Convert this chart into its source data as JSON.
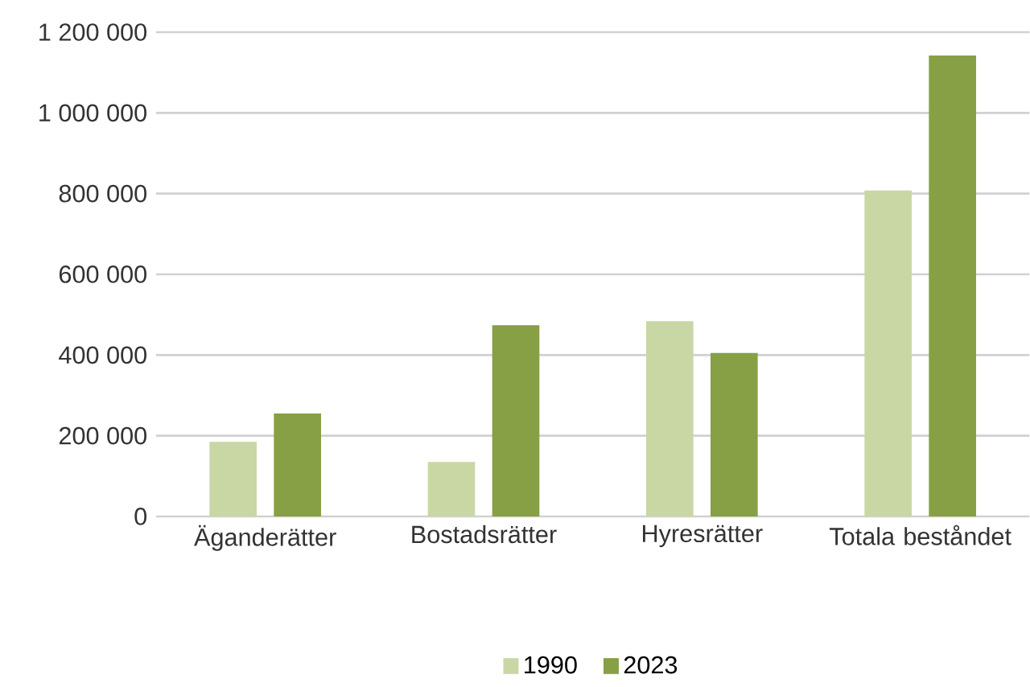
{
  "chart_data": {
    "type": "bar",
    "categories": [
      "Äganderätter",
      "Bostadsrätter",
      "Hyresrätter",
      "Totala beståndet"
    ],
    "series": [
      {
        "name": "1990",
        "color": "#c9d7a5",
        "values": [
          185000,
          135000,
          484000,
          808000
        ]
      },
      {
        "name": "2023",
        "color": "#87a045",
        "values": [
          255000,
          474000,
          405000,
          1142000
        ]
      }
    ],
    "ylim": [
      0,
      1200000
    ],
    "yticks": [
      0,
      {
        "value": 200000,
        "label": "200 000"
      },
      {
        "value": 400000,
        "label": "400 000"
      },
      {
        "value": 600000,
        "label": "600 000"
      },
      {
        "value": 800000,
        "label": "800 000"
      },
      {
        "value": 1000000,
        "label": "1 000 000"
      },
      {
        "value": 1200000,
        "label": "1 200 000"
      }
    ],
    "grid": "y",
    "legend": "bottom"
  }
}
